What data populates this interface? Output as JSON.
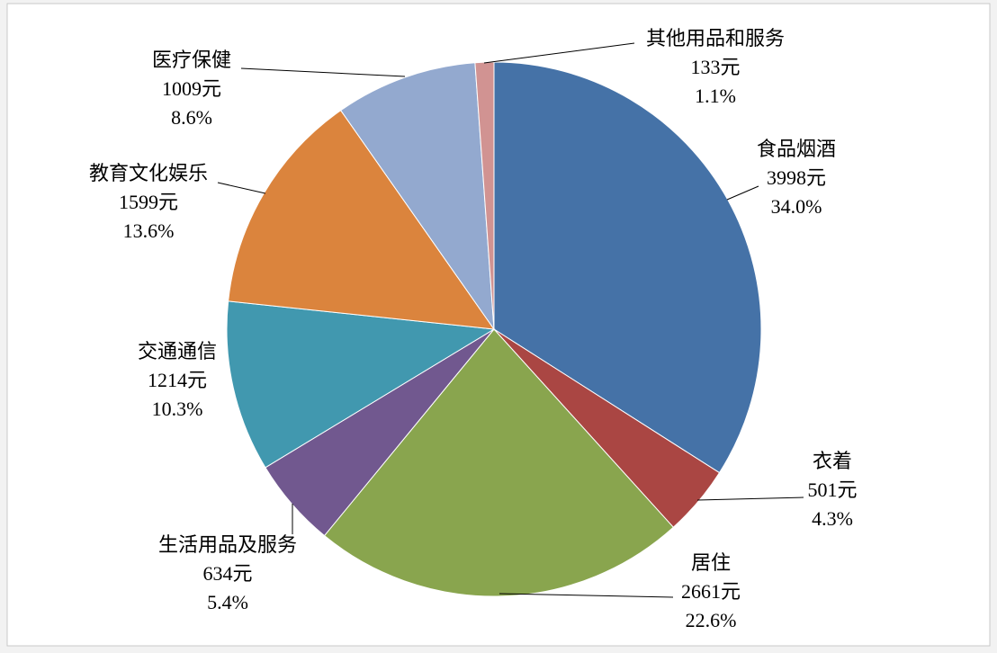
{
  "chart_data": {
    "type": "pie",
    "categories": [
      "食品烟酒",
      "衣着",
      "居住",
      "生活用品及服务",
      "交通通信",
      "教育文化娱乐",
      "医疗保健",
      "其他用品和服务"
    ],
    "values": [
      3998,
      501,
      2661,
      634,
      1214,
      1599,
      1009,
      133
    ],
    "value_labels": [
      "3998元",
      "501元",
      "2661元",
      "634元",
      "1214元",
      "1599元",
      "1009元",
      "133元"
    ],
    "percent_labels": [
      "34.0%",
      "4.3%",
      "22.6%",
      "5.4%",
      "10.3%",
      "13.6%",
      "8.6%",
      "1.1%"
    ],
    "colors": [
      "#4572a7",
      "#aa4643",
      "#89a54e",
      "#71588f",
      "#4198af",
      "#db843d",
      "#93a9cf",
      "#d19392"
    ]
  }
}
